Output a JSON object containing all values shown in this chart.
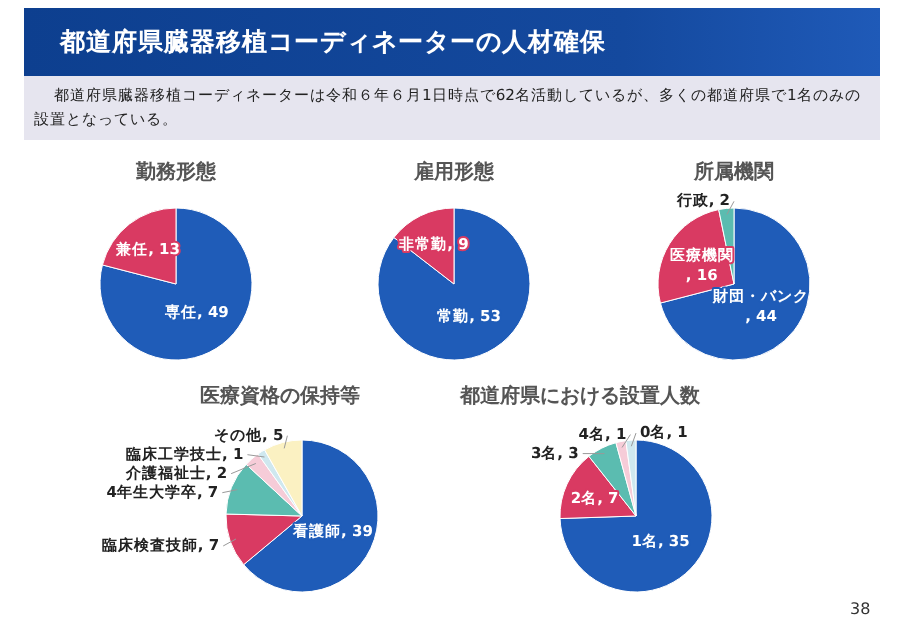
{
  "chart_data": [
    {
      "type": "other",
      "title": "都道府県臓器移植コーディネーターの人材確保",
      "subtitle": "都道府県臓器移植コーディネーターは令和６年６月1日時点で62名活動しているが、多くの都道府県で1名のみの設置となっている。",
      "annotations": [
        "38"
      ]
    },
    {
      "type": "pie",
      "title": "勤務形態",
      "categories": [
        "専任",
        "兼任"
      ],
      "values": [
        49,
        13
      ],
      "value_labels": [
        ", 49",
        ", 13"
      ],
      "colors": [
        "#1f5cb8",
        "#d93a62"
      ]
    },
    {
      "type": "pie",
      "title": "雇用形態",
      "categories": [
        "常勤",
        "非常勤"
      ],
      "values": [
        53,
        9
      ],
      "value_labels": [
        ", 53",
        ", 9"
      ],
      "colors": [
        "#1f5cb8",
        "#d93a62"
      ]
    },
    {
      "type": "pie",
      "title": "所属機関",
      "categories": [
        "財団・バンク",
        "医療機関",
        "行政"
      ],
      "values": [
        44,
        16,
        2
      ],
      "value_labels": [
        ", 44",
        ", 16",
        ", 2"
      ],
      "colors": [
        "#1f5cb8",
        "#d93a62",
        "#5bbcb0"
      ]
    },
    {
      "type": "pie",
      "title": "医療資格の保持等",
      "categories": [
        "看護師",
        "臨床検査技師",
        "4年生大学卒",
        "介護福祉士",
        "臨床工学技士",
        "その他"
      ],
      "values": [
        39,
        7,
        7,
        2,
        1,
        5
      ],
      "value_labels": [
        ", 39",
        ", 7",
        ", 7",
        ", 2",
        ", 1",
        ", 5"
      ],
      "colors": [
        "#1f5cb8",
        "#d93a62",
        "#5bbcb0",
        "#f6ccd8",
        "#cfe8ef",
        "#fbf1c2"
      ]
    },
    {
      "type": "pie",
      "title": "都道府県における設置人数",
      "categories": [
        "1名",
        "2名",
        "3名",
        "4名",
        "0名"
      ],
      "values": [
        35,
        7,
        3,
        1,
        1
      ],
      "value_labels": [
        ", 35",
        ", 7",
        ", 3",
        ", 1",
        ", 1"
      ],
      "colors": [
        "#1f5cb8",
        "#d93a62",
        "#5bbcb0",
        "#f6ccd8",
        "#cfe8ef"
      ]
    }
  ]
}
